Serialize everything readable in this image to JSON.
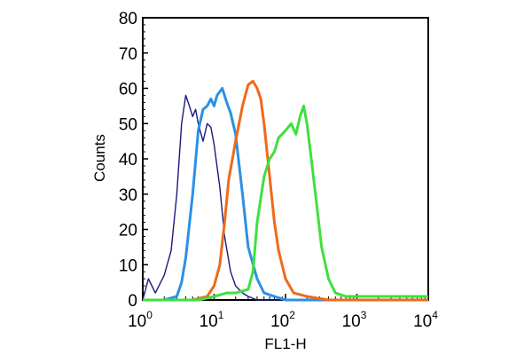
{
  "chart_data": {
    "type": "line",
    "title": "",
    "xlabel": "FL1-H",
    "ylabel": "Counts",
    "xscale": "log",
    "xlim": [
      1,
      10000
    ],
    "ylim": [
      0,
      80
    ],
    "grid": false,
    "legend": "none",
    "x_ticks": [
      {
        "base": "10",
        "exp": "0",
        "value": 1
      },
      {
        "base": "10",
        "exp": "1",
        "value": 10
      },
      {
        "base": "10",
        "exp": "2",
        "value": 100
      },
      {
        "base": "10",
        "exp": "3",
        "value": 1000
      },
      {
        "base": "10",
        "exp": "4",
        "value": 10000
      }
    ],
    "y_ticks": [
      "0",
      "10",
      "20",
      "30",
      "40",
      "50",
      "60",
      "70",
      "80"
    ],
    "series": [
      {
        "color": "#1a1a7a",
        "points": [
          [
            1,
            0
          ],
          [
            1.2,
            6
          ],
          [
            1.5,
            2
          ],
          [
            2,
            7
          ],
          [
            2.5,
            14
          ],
          [
            3,
            30
          ],
          [
            3.5,
            50
          ],
          [
            4,
            58
          ],
          [
            4.5,
            55
          ],
          [
            5,
            52
          ],
          [
            5.5,
            54
          ],
          [
            6,
            50
          ],
          [
            7,
            45
          ],
          [
            8,
            50
          ],
          [
            9,
            49
          ],
          [
            10,
            44
          ],
          [
            12,
            32
          ],
          [
            14,
            18
          ],
          [
            17,
            8
          ],
          [
            20,
            4
          ],
          [
            25,
            2
          ],
          [
            30,
            1
          ],
          [
            40,
            0
          ],
          [
            10000,
            0
          ]
        ]
      },
      {
        "color": "#2b90e6",
        "points": [
          [
            1,
            0
          ],
          [
            2,
            0
          ],
          [
            3,
            1
          ],
          [
            3.5,
            5
          ],
          [
            4,
            12
          ],
          [
            5,
            30
          ],
          [
            6,
            48
          ],
          [
            7,
            54
          ],
          [
            8,
            55
          ],
          [
            9,
            57
          ],
          [
            10,
            55
          ],
          [
            11,
            58
          ],
          [
            13,
            60
          ],
          [
            15,
            56
          ],
          [
            17,
            53
          ],
          [
            20,
            47
          ],
          [
            25,
            30
          ],
          [
            30,
            15
          ],
          [
            40,
            6
          ],
          [
            50,
            2
          ],
          [
            70,
            1
          ],
          [
            100,
            0
          ],
          [
            10000,
            0
          ]
        ]
      },
      {
        "color": "#ee6a1c",
        "points": [
          [
            1,
            0
          ],
          [
            5,
            0
          ],
          [
            8,
            1
          ],
          [
            10,
            4
          ],
          [
            12,
            10
          ],
          [
            14,
            22
          ],
          [
            16,
            34
          ],
          [
            20,
            45
          ],
          [
            25,
            55
          ],
          [
            30,
            61
          ],
          [
            35,
            62
          ],
          [
            40,
            60
          ],
          [
            45,
            57
          ],
          [
            50,
            50
          ],
          [
            60,
            35
          ],
          [
            70,
            22
          ],
          [
            80,
            14
          ],
          [
            100,
            6
          ],
          [
            130,
            2
          ],
          [
            200,
            1
          ],
          [
            400,
            0
          ],
          [
            10000,
            0
          ]
        ]
      },
      {
        "color": "#3ee03e",
        "points": [
          [
            1,
            0
          ],
          [
            6,
            0
          ],
          [
            10,
            1
          ],
          [
            15,
            2
          ],
          [
            20,
            2
          ],
          [
            30,
            3
          ],
          [
            35,
            8
          ],
          [
            40,
            22
          ],
          [
            50,
            35
          ],
          [
            60,
            40
          ],
          [
            70,
            42
          ],
          [
            80,
            46
          ],
          [
            100,
            48
          ],
          [
            120,
            50
          ],
          [
            140,
            47
          ],
          [
            160,
            52
          ],
          [
            180,
            55
          ],
          [
            200,
            50
          ],
          [
            230,
            40
          ],
          [
            270,
            28
          ],
          [
            320,
            15
          ],
          [
            400,
            6
          ],
          [
            500,
            2
          ],
          [
            700,
            1
          ],
          [
            1000,
            1
          ],
          [
            2000,
            1
          ],
          [
            5000,
            1
          ],
          [
            10000,
            1
          ]
        ]
      }
    ]
  }
}
